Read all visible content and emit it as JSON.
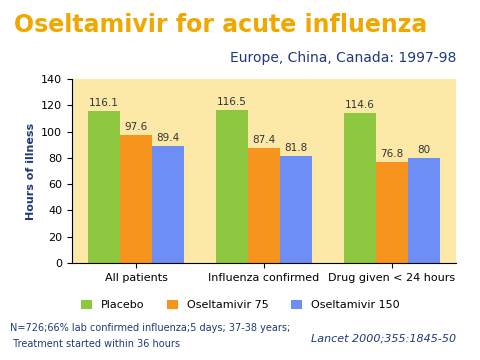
{
  "chart_data": {
    "type": "bar",
    "title": "Oseltamivir for acute influenza",
    "subtitle": "Europe, China, Canada: 1997-98",
    "y_label": "Hours of illness",
    "categories": [
      "All patients",
      "Influenza confirmed",
      "Drug given < 24 hours"
    ],
    "series": [
      {
        "name": "Placebo",
        "color": "#8DC63F",
        "values": [
          116.1,
          116.5,
          114.6
        ]
      },
      {
        "name": "Oseltamivir 75",
        "color": "#F7941D",
        "values": [
          97.6,
          87.4,
          76.8
        ]
      },
      {
        "name": "Oseltamivir 150",
        "color": "#6C8EF5",
        "values": [
          89.4,
          81.8,
          80
        ]
      }
    ],
    "ylim": [
      0,
      140
    ],
    "yticks": [
      0,
      20,
      40,
      60,
      80,
      100,
      120,
      140
    ],
    "grid": false,
    "legend": "lower center",
    "data_labels": true,
    "annotations": [
      "N=726;66% lab confirmed influenza;5 days; 37-38 years;",
      " Treatment started within 36 hours",
      "Lancet 2000;355:1845-50"
    ]
  }
}
